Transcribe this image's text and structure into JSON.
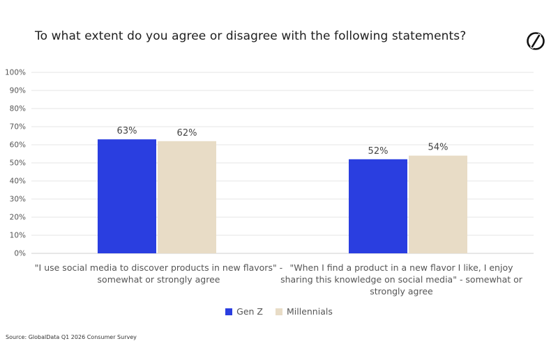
{
  "title": "To what extent do you agree or disagree with the following statements?",
  "source": "Source: GlobalData Q1 2026 Consumer Survey",
  "logo": {
    "icon": "globaldata-logo-icon"
  },
  "chart_data": {
    "type": "bar",
    "categories": [
      "\"I use social media to discover products in new flavors\" - somewhat or strongly agree",
      "\"When I find a product in a new flavor I like, I enjoy sharing this knowledge on social media\" - somewhat or strongly agree"
    ],
    "series": [
      {
        "name": "Gen Z",
        "values": [
          63,
          52
        ],
        "labels": [
          "63%",
          "52%"
        ],
        "color": "#2a3ee0"
      },
      {
        "name": "Millennials",
        "values": [
          62,
          54
        ],
        "labels": [
          "62%",
          "54%"
        ],
        "color": "#e8dcc6"
      }
    ],
    "ylim": [
      0,
      100
    ],
    "yticks": [
      "0%",
      "10%",
      "20%",
      "30%",
      "40%",
      "50%",
      "60%",
      "70%",
      "80%",
      "90%",
      "100%"
    ],
    "grid": true,
    "legend": "bottom-center",
    "title": "To what extent do you agree or disagree with the following statements?"
  }
}
